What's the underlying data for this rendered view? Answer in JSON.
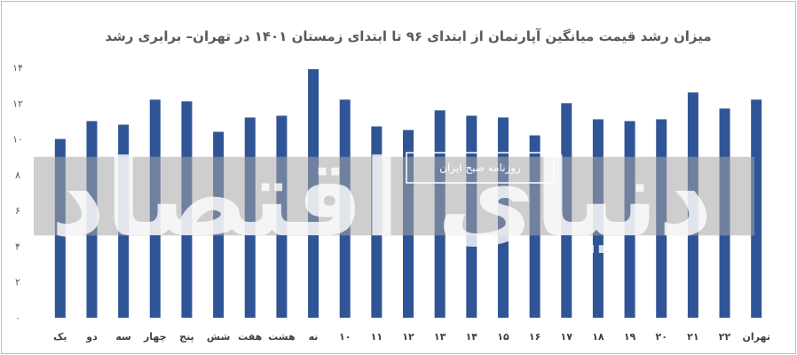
{
  "chart_data": {
    "type": "bar",
    "title": "میزان رشد قیمت میانگین آپارتمان از ابتدای ۹۶ تا ابتدای زمستان ۱۴۰۱ در تهران– برابری رشد",
    "xlabel": "",
    "ylabel": "",
    "ylim": [
      0,
      14
    ],
    "y_ticks": [
      "۰",
      "۲",
      "۴",
      "۶",
      "۸",
      "۱۰",
      "۱۲",
      "۱۴"
    ],
    "grid": false,
    "legend": "none",
    "bar_color": "#2f5597",
    "categories": [
      "یک",
      "دو",
      "سه",
      "چهار",
      "پنج",
      "شش",
      "هفت",
      "هشت",
      "نه",
      "۱۰",
      "۱۱",
      "۱۲",
      "۱۳",
      "۱۴",
      "۱۵",
      "۱۶",
      "۱۷",
      "۱۸",
      "۱۹",
      "۲۰",
      "۲۱",
      "۲۲",
      "تهران"
    ],
    "values": [
      10.0,
      11.0,
      10.8,
      12.2,
      12.1,
      10.4,
      11.2,
      11.3,
      13.9,
      12.2,
      10.7,
      10.5,
      11.6,
      11.3,
      11.2,
      10.2,
      12.0,
      11.1,
      11.0,
      11.1,
      12.6,
      11.7,
      12.2
    ]
  },
  "watermark": {
    "stamp_text": "روزنامه صبح ایران",
    "logo_text": "دنیای اقتصاد",
    "band_color": "#a6a6a6"
  }
}
